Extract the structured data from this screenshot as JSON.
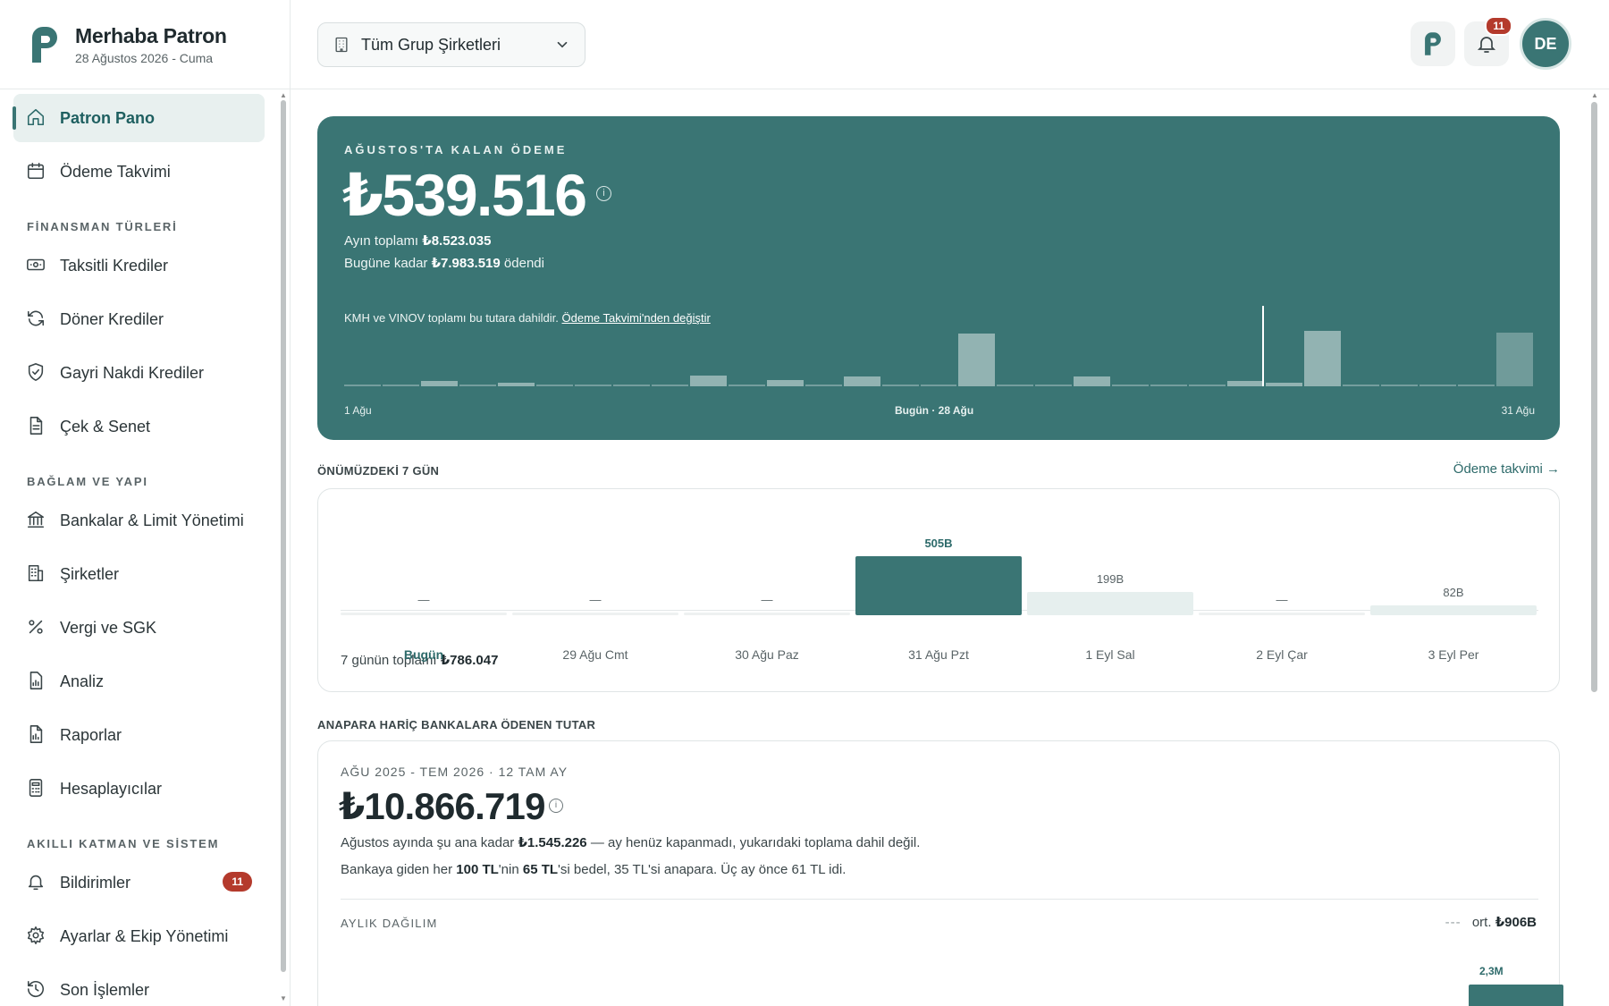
{
  "brand": {
    "title": "Merhaba Patron",
    "date": "28 Ağustos 2026 - Cuma"
  },
  "nav": {
    "main": [
      {
        "label": "Patron Pano",
        "icon": "home-icon",
        "active": true
      },
      {
        "label": "Ödeme Takvimi",
        "icon": "calendar-icon"
      }
    ],
    "sections": [
      "FİNANSMAN TÜRLERİ",
      "BAĞLAM VE YAPI",
      "AKILLI KATMAN VE SİSTEM"
    ],
    "finance": [
      {
        "label": "Taksitli Krediler",
        "icon": "banknote-icon"
      },
      {
        "label": "Döner Krediler",
        "icon": "refresh-icon"
      },
      {
        "label": "Gayri Nakdi Krediler",
        "icon": "shield-check-icon"
      },
      {
        "label": "Çek & Senet",
        "icon": "document-icon"
      }
    ],
    "context": [
      {
        "label": "Bankalar & Limit Yönetimi",
        "icon": "bank-icon"
      },
      {
        "label": "Şirketler",
        "icon": "building-icon"
      },
      {
        "label": "Vergi ve SGK",
        "icon": "percent-icon"
      },
      {
        "label": "Analiz",
        "icon": "chart-file-icon"
      },
      {
        "label": "Raporlar",
        "icon": "report-icon"
      },
      {
        "label": "Hesaplayıcılar",
        "icon": "calculator-icon"
      }
    ],
    "system": [
      {
        "label": "Bildirimler",
        "icon": "bell-icon",
        "badge": "11"
      },
      {
        "label": "Ayarlar & Ekip Yönetimi",
        "icon": "gear-icon"
      },
      {
        "label": "Son İşlemler",
        "icon": "history-icon"
      }
    ]
  },
  "header": {
    "company_select": "Tüm Grup Şirketleri",
    "notif_count": "11",
    "avatar": "DE"
  },
  "hero": {
    "eyebrow": "AĞUSTOS'TA KALAN ÖDEME",
    "amount": "₺539.516",
    "month_total_label": "Ayın toplamı",
    "month_total": "₺8.523.035",
    "paid_label_pre": "Bugüne kadar",
    "paid": "₺7.983.519",
    "paid_label_post": "ödendi",
    "note": "KMH ve VINOV toplamı bu tutara dahildir.",
    "note_link": "Ödeme Takvimi'nden değiştir",
    "axis_start": "1 Ağu",
    "axis_today": "Bugün · 28 Ağu",
    "axis_end": "31 Ağu"
  },
  "week": {
    "title": "ÖNÜMÜZDEKİ 7 GÜN",
    "link": "Ödeme takvimi →",
    "days": [
      {
        "label": "Bugün",
        "value": "—",
        "today": true
      },
      {
        "label": "29 Ağu Cmt",
        "value": "—"
      },
      {
        "label": "30 Ağu Paz",
        "value": "—"
      },
      {
        "label": "31 Ağu Pzt",
        "value": "505B"
      },
      {
        "label": "1 Eyl Sal",
        "value": "199B"
      },
      {
        "label": "2 Eyl Çar",
        "value": "—"
      },
      {
        "label": "3 Eyl Per",
        "value": "82B"
      }
    ],
    "total_label": "7 günün toplamı",
    "total": "₺786.047"
  },
  "interest": {
    "title": "ANAPARA HARİÇ BANKALARA ÖDENEN TUTAR",
    "eyebrow": "AĞU 2025 - TEM 2026 · 12 TAM AY",
    "amount": "₺10.866.719",
    "line1_pre": "Ağustos ayında şu ana kadar",
    "line1_amount": "₺1.545.226",
    "line1_post": "— ay henüz kapanmadı, yukarıdaki toplama dahil değil.",
    "line2_a": "Bankaya giden her",
    "line2_b": "100 TL",
    "line2_c": "'nin",
    "line2_d": "65 TL",
    "line2_e": "'si bedel, 35 TL'si anapara. Üç ay önce 61 TL idi.",
    "sub": "AYLIK DAĞILIM",
    "avg_label": "ort.",
    "avg": "₺906B",
    "top_value": "2,3M"
  },
  "chart_data": [
    {
      "type": "bar",
      "title": "",
      "xlabel": "",
      "ylabel": "",
      "note": "Daily payments in August; relative heights only (no printed values)",
      "categories": [
        "1",
        "2",
        "3",
        "4",
        "5",
        "6",
        "7",
        "8",
        "9",
        "10",
        "11",
        "12",
        "13",
        "14",
        "15",
        "16",
        "17",
        "18",
        "19",
        "20",
        "21",
        "22",
        "23",
        "24",
        "25",
        "26",
        "27",
        "28",
        "29",
        "30",
        "31"
      ],
      "values": [
        1,
        1,
        6,
        1,
        4,
        1,
        1,
        1,
        1,
        12,
        1,
        7,
        1,
        11,
        1,
        1,
        58,
        1,
        1,
        11,
        1,
        1,
        1,
        6,
        4,
        61,
        1,
        1,
        1,
        1,
        59
      ]
    },
    {
      "type": "bar",
      "title": "",
      "categories": [
        "Bugün",
        "29 Ağu Cmt",
        "30 Ağu Paz",
        "31 Ağu Pzt",
        "1 Eyl Sal",
        "2 Eyl Çar",
        "3 Eyl Per"
      ],
      "values": [
        0,
        0,
        0,
        505,
        199,
        0,
        82
      ],
      "ylabel": ""
    }
  ]
}
